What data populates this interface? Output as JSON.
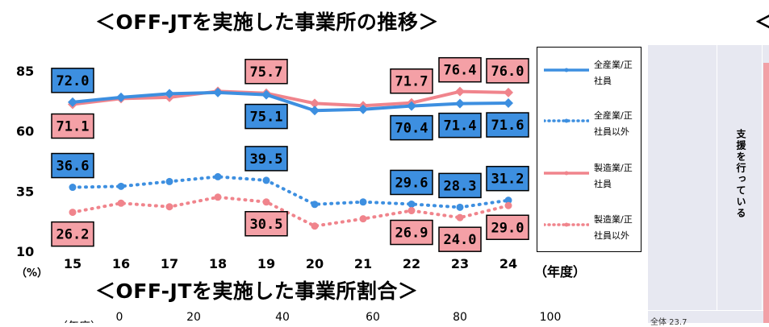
{
  "titles": {
    "main": "＜OFF-JTを実施した事業所の推移＞",
    "second": "＜OFF-JTを実施した事業所割合＞",
    "right_partial": "＜"
  },
  "right_panel": {
    "vertical_text": "支援を行っている",
    "footer_text": "全体    23.7"
  },
  "chart_data": {
    "type": "line",
    "x": [
      "15",
      "16",
      "17",
      "18",
      "19",
      "20",
      "21",
      "22",
      "23",
      "24"
    ],
    "xlabel": "（年度）",
    "ylabel": "（%）",
    "yticks": [
      "85",
      "60",
      "35",
      "10"
    ],
    "ylim": [
      10,
      85
    ],
    "grid": false,
    "legend_position": "right",
    "series": [
      {
        "name": "全産業/正社員",
        "color": "#3d8fe0",
        "style": "solid",
        "values": [
          72.0,
          74.0,
          75.5,
          76.0,
          75.1,
          68.5,
          69.0,
          70.4,
          71.4,
          71.6
        ]
      },
      {
        "name": "全産業/正社員以外",
        "color": "#3d8fe0",
        "style": "dotted",
        "values": [
          36.6,
          37.0,
          39.0,
          41.0,
          39.5,
          29.5,
          30.5,
          29.6,
          28.3,
          31.2
        ]
      },
      {
        "name": "製造業/正社員",
        "color": "#f0848c",
        "style": "solid",
        "values": [
          71.1,
          73.5,
          74.0,
          76.5,
          75.7,
          71.5,
          70.5,
          71.7,
          76.4,
          76.0
        ]
      },
      {
        "name": "製造業/正社員以外",
        "color": "#f0848c",
        "style": "dotted",
        "values": [
          26.2,
          30.0,
          28.5,
          32.5,
          30.5,
          20.5,
          23.5,
          26.9,
          24.0,
          29.0
        ]
      }
    ],
    "data_labels": [
      {
        "series": 0,
        "index": 0,
        "text": "72.0",
        "color": "#3d8fe0",
        "pos": "above"
      },
      {
        "series": 2,
        "index": 0,
        "text": "71.1",
        "color": "#f4a0a6",
        "pos": "below"
      },
      {
        "series": 2,
        "index": 4,
        "text": "75.7",
        "color": "#f4a0a6",
        "pos": "above"
      },
      {
        "series": 0,
        "index": 4,
        "text": "75.1",
        "color": "#3d8fe0",
        "pos": "below"
      },
      {
        "series": 2,
        "index": 7,
        "text": "71.7",
        "color": "#f4a0a6",
        "pos": "above"
      },
      {
        "series": 0,
        "index": 7,
        "text": "70.4",
        "color": "#3d8fe0",
        "pos": "below"
      },
      {
        "series": 2,
        "index": 8,
        "text": "76.4",
        "color": "#f4a0a6",
        "pos": "above"
      },
      {
        "series": 0,
        "index": 8,
        "text": "71.4",
        "color": "#3d8fe0",
        "pos": "below"
      },
      {
        "series": 2,
        "index": 9,
        "text": "76.0",
        "color": "#f4a0a6",
        "pos": "above"
      },
      {
        "series": 0,
        "index": 9,
        "text": "71.6",
        "color": "#3d8fe0",
        "pos": "below"
      },
      {
        "series": 1,
        "index": 0,
        "text": "36.6",
        "color": "#3d8fe0",
        "pos": "above"
      },
      {
        "series": 1,
        "index": 4,
        "text": "39.5",
        "color": "#3d8fe0",
        "pos": "above"
      },
      {
        "series": 1,
        "index": 7,
        "text": "29.6",
        "color": "#3d8fe0",
        "pos": "above"
      },
      {
        "series": 1,
        "index": 8,
        "text": "28.3",
        "color": "#3d8fe0",
        "pos": "above"
      },
      {
        "series": 1,
        "index": 9,
        "text": "31.2",
        "color": "#3d8fe0",
        "pos": "above"
      },
      {
        "series": 3,
        "index": 0,
        "text": "26.2",
        "color": "#f4a0a6",
        "pos": "below"
      },
      {
        "series": 3,
        "index": 4,
        "text": "30.5",
        "color": "#f4a0a6",
        "pos": "below"
      },
      {
        "series": 3,
        "index": 7,
        "text": "26.9",
        "color": "#f4a0a6",
        "pos": "below"
      },
      {
        "series": 3,
        "index": 8,
        "text": "24.0",
        "color": "#f4a0a6",
        "pos": "below"
      },
      {
        "series": 3,
        "index": 9,
        "text": "29.0",
        "color": "#f4a0a6",
        "pos": "below"
      }
    ],
    "second_axis_ticks": [
      "0",
      "20",
      "40",
      "60",
      "80",
      "100"
    ],
    "second_axis_label": "（年度）"
  }
}
